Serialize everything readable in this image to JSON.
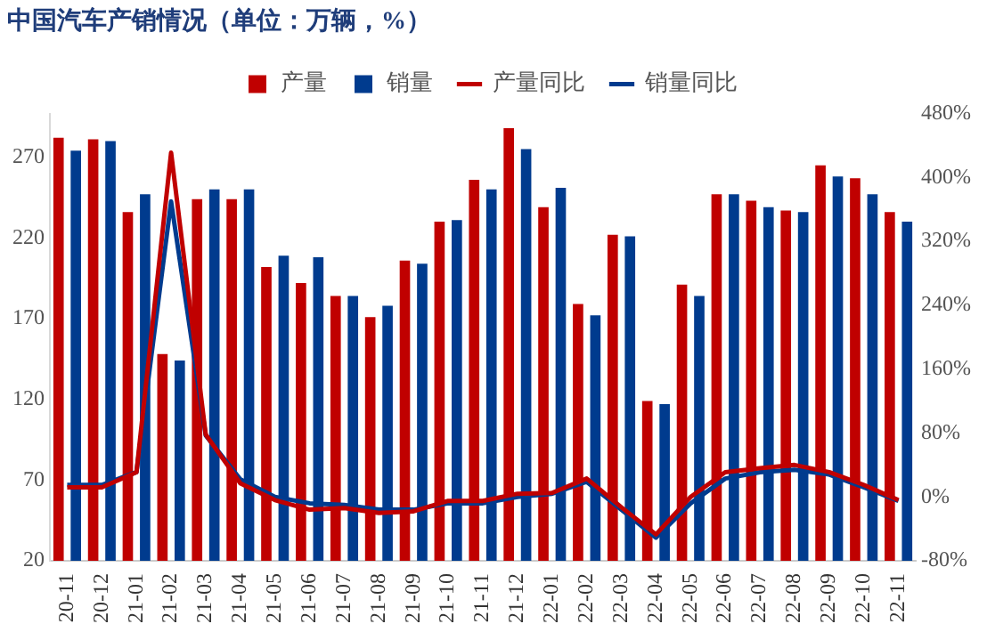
{
  "chart_data": {
    "type": "bar",
    "title": "中国汽车产销情况（单位：万辆，%）",
    "categories": [
      "20-11",
      "20-12",
      "21-01",
      "21-02",
      "21-03",
      "21-04",
      "21-05",
      "21-06",
      "21-07",
      "21-08",
      "21-09",
      "21-10",
      "21-11",
      "21-12",
      "22-01",
      "22-02",
      "22-03",
      "22-04",
      "22-05",
      "22-06",
      "22-07",
      "22-08",
      "22-09",
      "22-10",
      "22-11"
    ],
    "series": [
      {
        "name": "产量",
        "color": "#c00000",
        "values": [
          282,
          281,
          236,
          148,
          244,
          244,
          202,
          192,
          184,
          171,
          206,
          230,
          256,
          288,
          239,
          179,
          222,
          119,
          191,
          247,
          243,
          237,
          265,
          257,
          236
        ]
      },
      {
        "name": "销量",
        "color": "#003b8e",
        "values": [
          274,
          280,
          247,
          144,
          250,
          250,
          209,
          208,
          184,
          178,
          204,
          231,
          250,
          275,
          251,
          172,
          221,
          117,
          184,
          247,
          239,
          236,
          258,
          247,
          230
        ]
      },
      {
        "name": "产量同比",
        "type": "line",
        "axis": "y2",
        "color": "#c00000",
        "values": [
          12,
          12,
          31,
          431,
          78,
          17,
          -4,
          -16,
          -14,
          -20,
          -18,
          -5,
          -5,
          4,
          5,
          23,
          -13,
          -47,
          0,
          31,
          36,
          40,
          31,
          15,
          -4
        ]
      },
      {
        "name": "销量同比",
        "type": "line",
        "axis": "y2",
        "color": "#003b8e",
        "values": [
          15,
          15,
          31,
          370,
          77,
          22,
          0,
          -8,
          -10,
          -16,
          -16,
          -8,
          -8,
          0,
          4,
          19,
          -16,
          -51,
          -8,
          23,
          31,
          34,
          28,
          12,
          -5
        ]
      }
    ],
    "ylim": [
      20,
      297
    ],
    "yticks": [
      20,
      70,
      120,
      170,
      220,
      270
    ],
    "y2lim": [
      -80,
      480
    ],
    "y2ticks": [
      {
        "value": -80,
        "label": "-80%"
      },
      {
        "value": 0,
        "label": "0%"
      },
      {
        "value": 80,
        "label": "80%"
      },
      {
        "value": 160,
        "label": "160%"
      },
      {
        "value": 240,
        "label": "240%"
      },
      {
        "value": 320,
        "label": "320%"
      },
      {
        "value": 400,
        "label": "400%"
      },
      {
        "value": 480,
        "label": "480%"
      }
    ],
    "grid": false,
    "legend": "top",
    "marker": "none",
    "line_style": "solid"
  }
}
